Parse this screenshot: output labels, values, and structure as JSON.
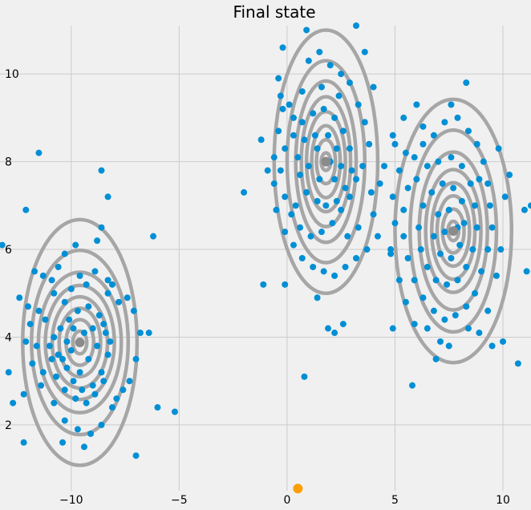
{
  "chart_data": {
    "type": "scatter",
    "title": "Final state",
    "xlabel": "",
    "ylabel": "",
    "xlim": [
      -13.3,
      11.3
    ],
    "ylim": [
      0.5,
      11.1
    ],
    "xticks": [
      -10,
      -5,
      0,
      5,
      10
    ],
    "yticks": [
      2,
      4,
      6,
      8,
      10
    ],
    "xtick_labels": [
      "−10",
      "−5",
      "0",
      "5",
      "10"
    ],
    "ytick_labels": [
      "2",
      "4",
      "6",
      "8",
      "10"
    ],
    "grid": true,
    "colors": {
      "background": "#f0f0f0",
      "grid": "#cbcbcb",
      "points": "#008fd5",
      "centroid": "#8b8b8b",
      "contour": "#a6a6a6",
      "origin_marker": "#fc9e07"
    },
    "clusters": [
      {
        "center": [
          -9.6,
          3.88
        ],
        "sx": [
          0.32,
          0.64,
          0.96,
          1.28,
          1.6,
          1.92,
          2.24,
          2.65
        ],
        "sy": [
          0.26,
          0.52,
          0.78,
          1.04,
          1.3,
          1.6,
          2.1,
          2.8
        ]
      },
      {
        "center": [
          1.8,
          8.0
        ],
        "sx": [
          0.22,
          0.44,
          0.66,
          0.9,
          1.14,
          1.4,
          1.8,
          2.4
        ],
        "sy": [
          0.2,
          0.5,
          0.82,
          1.14,
          1.48,
          1.84,
          2.3,
          3.0
        ]
      },
      {
        "center": [
          7.7,
          6.42
        ],
        "sx": [
          0.25,
          0.5,
          0.75,
          1.0,
          1.28,
          1.58,
          2.0,
          2.7
        ],
        "sy": [
          0.22,
          0.5,
          0.8,
          1.1,
          1.4,
          1.8,
          2.3,
          3.0
        ]
      }
    ],
    "origin_marker": [
      0.5,
      0.55
    ],
    "points": [
      [
        -12.4,
        4.9
      ],
      [
        -12.0,
        4.7
      ],
      [
        -11.7,
        5.5
      ],
      [
        -11.3,
        5.4
      ],
      [
        -10.9,
        5.3
      ],
      [
        -10.6,
        5.6
      ],
      [
        -10.3,
        5.9
      ],
      [
        -9.8,
        6.1
      ],
      [
        -8.8,
        6.2
      ],
      [
        -8.6,
        6.5
      ],
      [
        -8.3,
        5.3
      ],
      [
        -8.1,
        5.2
      ],
      [
        -7.8,
        4.8
      ],
      [
        -7.4,
        4.9
      ],
      [
        -7.1,
        4.6
      ],
      [
        -6.8,
        4.1
      ],
      [
        -7.0,
        3.5
      ],
      [
        -7.3,
        3.0
      ],
      [
        -7.6,
        2.8
      ],
      [
        -7.9,
        2.6
      ],
      [
        -8.1,
        2.4
      ],
      [
        -8.6,
        2.0
      ],
      [
        -9.1,
        1.8
      ],
      [
        -9.7,
        1.9
      ],
      [
        -10.3,
        2.1
      ],
      [
        -10.8,
        2.5
      ],
      [
        -11.4,
        2.9
      ],
      [
        -11.8,
        3.4
      ],
      [
        -12.1,
        3.9
      ],
      [
        -11.9,
        4.3
      ],
      [
        -11.5,
        4.6
      ],
      [
        -11.0,
        3.8
      ],
      [
        -10.6,
        3.6
      ],
      [
        -10.2,
        3.3
      ],
      [
        -9.9,
        3.0
      ],
      [
        -9.5,
        2.8
      ],
      [
        -9.0,
        2.9
      ],
      [
        -8.6,
        3.2
      ],
      [
        -8.3,
        3.6
      ],
      [
        -8.4,
        4.1
      ],
      [
        -8.7,
        4.5
      ],
      [
        -9.2,
        4.7
      ],
      [
        -9.7,
        4.6
      ],
      [
        -10.1,
        4.4
      ],
      [
        -10.5,
        4.2
      ],
      [
        -10.8,
        4.0
      ],
      [
        -10.9,
        3.5
      ],
      [
        -10.7,
        3.1
      ],
      [
        -10.3,
        2.8
      ],
      [
        -9.8,
        2.6
      ],
      [
        -9.3,
        2.5
      ],
      [
        -8.9,
        2.7
      ],
      [
        -8.5,
        3.0
      ],
      [
        -8.2,
        3.9
      ],
      [
        -8.5,
        4.3
      ],
      [
        -9.0,
        4.2
      ],
      [
        -9.4,
        4.1
      ],
      [
        -9.9,
        4.2
      ],
      [
        -10.2,
        3.9
      ],
      [
        -10.4,
        3.5
      ],
      [
        -9.2,
        3.5
      ],
      [
        -8.8,
        3.8
      ],
      [
        -9.6,
        3.2
      ],
      [
        -10.0,
        3.7
      ],
      [
        -9.3,
        5.2
      ],
      [
        -8.9,
        5.5
      ],
      [
        -9.6,
        5.4
      ],
      [
        -10.0,
        5.1
      ],
      [
        -10.8,
        5.0
      ],
      [
        -11.2,
        4.4
      ],
      [
        -11.6,
        3.8
      ],
      [
        -11.3,
        3.2
      ],
      [
        -12.2,
        2.7
      ],
      [
        -12.7,
        2.5
      ],
      [
        -12.9,
        3.2
      ],
      [
        -12.2,
        1.6
      ],
      [
        -11.5,
        8.2
      ],
      [
        -12.1,
        6.9
      ],
      [
        -8.6,
        7.8
      ],
      [
        -8.3,
        7.2
      ],
      [
        -6.2,
        6.3
      ],
      [
        -6.4,
        4.1
      ],
      [
        -6.0,
        2.4
      ],
      [
        -5.2,
        2.3
      ],
      [
        -7.0,
        1.3
      ],
      [
        -8.3,
        5.0
      ],
      [
        -10.4,
        1.6
      ],
      [
        -9.4,
        1.5
      ],
      [
        -13.2,
        6.1
      ],
      [
        -10.3,
        4.8
      ],
      [
        -0.4,
        9.9
      ],
      [
        -0.3,
        9.5
      ],
      [
        0.1,
        9.3
      ],
      [
        0.3,
        9.0
      ],
      [
        0.7,
        9.6
      ],
      [
        1.0,
        10.3
      ],
      [
        1.5,
        10.5
      ],
      [
        2.0,
        10.2
      ],
      [
        2.5,
        10.0
      ],
      [
        2.9,
        9.8
      ],
      [
        3.3,
        9.3
      ],
      [
        3.6,
        8.9
      ],
      [
        3.8,
        8.4
      ],
      [
        3.5,
        7.9
      ],
      [
        3.2,
        7.6
      ],
      [
        2.9,
        7.2
      ],
      [
        2.5,
        6.9
      ],
      [
        2.1,
        6.6
      ],
      [
        1.6,
        6.4
      ],
      [
        1.1,
        6.3
      ],
      [
        0.6,
        6.5
      ],
      [
        0.2,
        6.8
      ],
      [
        -0.1,
        7.2
      ],
      [
        -0.3,
        7.8
      ],
      [
        -0.1,
        8.3
      ],
      [
        0.3,
        8.6
      ],
      [
        0.7,
        8.9
      ],
      [
        1.2,
        9.1
      ],
      [
        1.7,
        9.2
      ],
      [
        2.2,
        9.0
      ],
      [
        2.6,
        8.7
      ],
      [
        2.9,
        8.3
      ],
      [
        3.0,
        7.8
      ],
      [
        2.7,
        7.4
      ],
      [
        2.3,
        7.1
      ],
      [
        1.8,
        7.0
      ],
      [
        1.4,
        7.1
      ],
      [
        0.9,
        7.3
      ],
      [
        0.6,
        7.7
      ],
      [
        0.5,
        8.1
      ],
      [
        0.8,
        8.5
      ],
      [
        1.3,
        8.6
      ],
      [
        1.9,
        8.6
      ],
      [
        2.3,
        8.3
      ],
      [
        2.5,
        7.9
      ],
      [
        2.2,
        7.6
      ],
      [
        1.5,
        7.6
      ],
      [
        1.0,
        7.9
      ],
      [
        1.4,
        8.3
      ],
      [
        2.0,
        8.0
      ],
      [
        3.9,
        7.3
      ],
      [
        4.0,
        6.8
      ],
      [
        4.2,
        6.3
      ],
      [
        3.7,
        6.0
      ],
      [
        3.2,
        5.8
      ],
      [
        2.7,
        5.6
      ],
      [
        2.2,
        5.4
      ],
      [
        1.7,
        5.5
      ],
      [
        1.2,
        5.6
      ],
      [
        0.7,
        5.8
      ],
      [
        0.3,
        6.1
      ],
      [
        -0.1,
        6.4
      ],
      [
        -0.5,
        6.9
      ],
      [
        -0.6,
        7.5
      ],
      [
        -0.6,
        8.1
      ],
      [
        -0.4,
        8.7
      ],
      [
        1.4,
        4.9
      ],
      [
        2.6,
        4.3
      ],
      [
        2.2,
        4.1
      ],
      [
        1.9,
        4.2
      ],
      [
        0.8,
        3.1
      ],
      [
        -0.1,
        5.2
      ],
      [
        -1.1,
        5.2
      ],
      [
        -2.0,
        7.3
      ],
      [
        -0.9,
        7.8
      ],
      [
        -0.2,
        10.6
      ],
      [
        3.2,
        11.1
      ],
      [
        3.6,
        10.5
      ],
      [
        4.0,
        9.7
      ],
      [
        4.9,
        8.6
      ],
      [
        0.9,
        11.0
      ],
      [
        2.4,
        9.5
      ],
      [
        1.6,
        9.7
      ],
      [
        4.3,
        7.5
      ],
      [
        4.5,
        7.9
      ],
      [
        -1.2,
        8.5
      ],
      [
        -0.2,
        9.2
      ],
      [
        2.8,
        6.3
      ],
      [
        3.3,
        6.5
      ],
      [
        0.4,
        7.0
      ],
      [
        5.2,
        7.8
      ],
      [
        5.5,
        8.2
      ],
      [
        5.9,
        8.1
      ],
      [
        6.3,
        8.4
      ],
      [
        6.8,
        8.6
      ],
      [
        7.3,
        8.9
      ],
      [
        7.9,
        9.0
      ],
      [
        8.4,
        8.7
      ],
      [
        8.8,
        8.4
      ],
      [
        9.1,
        8.0
      ],
      [
        9.3,
        7.5
      ],
      [
        9.4,
        7.0
      ],
      [
        9.5,
        6.5
      ],
      [
        9.3,
        6.0
      ],
      [
        9.0,
        5.5
      ],
      [
        8.7,
        5.0
      ],
      [
        8.3,
        4.7
      ],
      [
        7.8,
        4.5
      ],
      [
        7.3,
        4.4
      ],
      [
        6.8,
        4.6
      ],
      [
        6.3,
        4.9
      ],
      [
        5.9,
        5.3
      ],
      [
        5.6,
        5.8
      ],
      [
        5.4,
        6.3
      ],
      [
        5.4,
        6.9
      ],
      [
        5.6,
        7.4
      ],
      [
        6.0,
        7.6
      ],
      [
        6.5,
        7.9
      ],
      [
        7.0,
        8.0
      ],
      [
        7.6,
        8.1
      ],
      [
        8.1,
        7.9
      ],
      [
        8.5,
        7.5
      ],
      [
        8.7,
        7.0
      ],
      [
        8.8,
        6.5
      ],
      [
        8.6,
        6.0
      ],
      [
        8.3,
        5.6
      ],
      [
        7.9,
        5.3
      ],
      [
        7.4,
        5.2
      ],
      [
        6.9,
        5.3
      ],
      [
        6.5,
        5.6
      ],
      [
        6.2,
        6.0
      ],
      [
        6.1,
        6.5
      ],
      [
        6.3,
        7.0
      ],
      [
        6.7,
        7.3
      ],
      [
        7.2,
        7.5
      ],
      [
        7.7,
        7.4
      ],
      [
        8.1,
        7.1
      ],
      [
        8.2,
        6.6
      ],
      [
        8.0,
        6.1
      ],
      [
        7.6,
        5.8
      ],
      [
        7.1,
        5.9
      ],
      [
        6.8,
        6.3
      ],
      [
        7.0,
        6.8
      ],
      [
        7.5,
        6.9
      ],
      [
        7.9,
        6.5
      ],
      [
        7.3,
        6.4
      ],
      [
        5.0,
        6.6
      ],
      [
        4.9,
        7.2
      ],
      [
        4.8,
        5.9
      ],
      [
        5.2,
        5.3
      ],
      [
        5.5,
        4.8
      ],
      [
        5.9,
        4.3
      ],
      [
        6.5,
        4.2
      ],
      [
        7.1,
        3.9
      ],
      [
        7.5,
        3.8
      ],
      [
        8.4,
        4.2
      ],
      [
        8.9,
        4.1
      ],
      [
        9.3,
        4.6
      ],
      [
        9.7,
        5.4
      ],
      [
        9.9,
        6.0
      ],
      [
        10.1,
        7.2
      ],
      [
        10.3,
        7.7
      ],
      [
        9.8,
        8.3
      ],
      [
        8.3,
        9.8
      ],
      [
        7.6,
        9.3
      ],
      [
        6.0,
        9.3
      ],
      [
        5.4,
        9.0
      ],
      [
        5.0,
        8.4
      ],
      [
        4.9,
        4.2
      ],
      [
        5.8,
        2.9
      ],
      [
        6.9,
        3.5
      ],
      [
        10.7,
        3.4
      ],
      [
        11.0,
        6.9
      ],
      [
        11.3,
        7.0
      ],
      [
        11.1,
        5.5
      ],
      [
        10.0,
        3.9
      ],
      [
        9.5,
        3.8
      ],
      [
        4.8,
        6.0
      ],
      [
        6.3,
        8.8
      ],
      [
        8.9,
        7.6
      ]
    ],
    "centroids": [
      [
        -9.6,
        3.88
      ],
      [
        1.8,
        8.0
      ],
      [
        7.7,
        6.42
      ]
    ]
  }
}
